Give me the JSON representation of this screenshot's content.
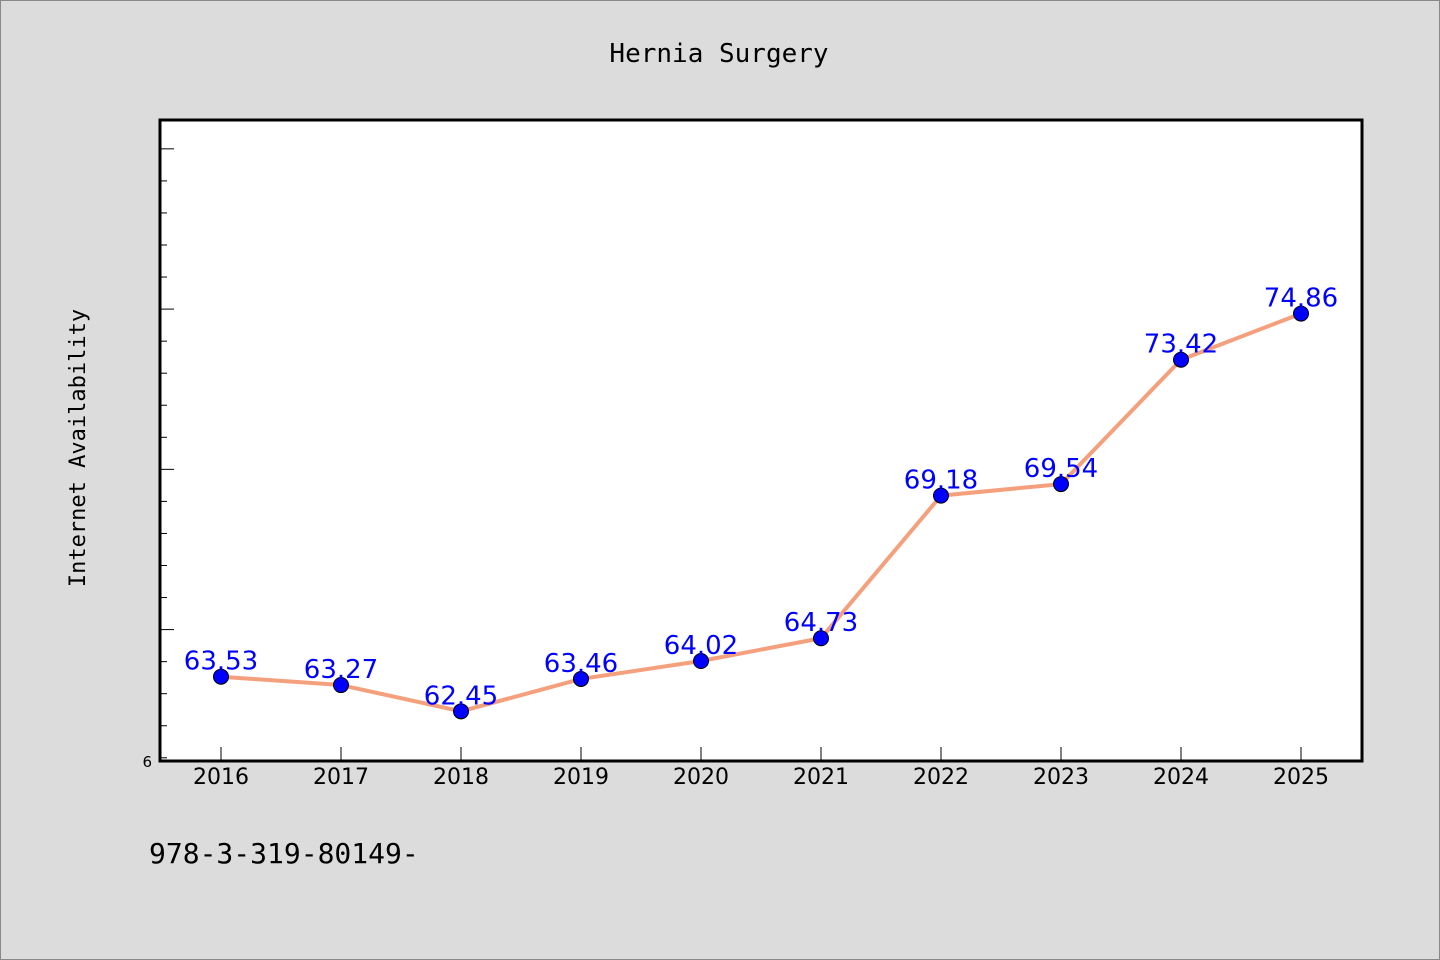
{
  "chart_data": {
    "type": "line",
    "title": "Hernia Surgery",
    "xlabel": "",
    "ylabel": "Internet Availability",
    "categories": [
      "2016",
      "2017",
      "2018",
      "2019",
      "2020",
      "2021",
      "2022",
      "2023",
      "2024",
      "2025"
    ],
    "series": [
      {
        "values": [
          63.53,
          63.27,
          62.45,
          63.46,
          64.02,
          64.73,
          69.18,
          69.54,
          73.42,
          74.86
        ]
      }
    ],
    "y_tick_labels": [
      "6"
    ],
    "ylim": [
      60.9,
      80.9
    ],
    "grid": false,
    "line_color": "#f4a07c",
    "marker_color": "#0000ff",
    "label_color": "#0000ff"
  },
  "footer": {
    "text": "978-3-319-80149-"
  }
}
